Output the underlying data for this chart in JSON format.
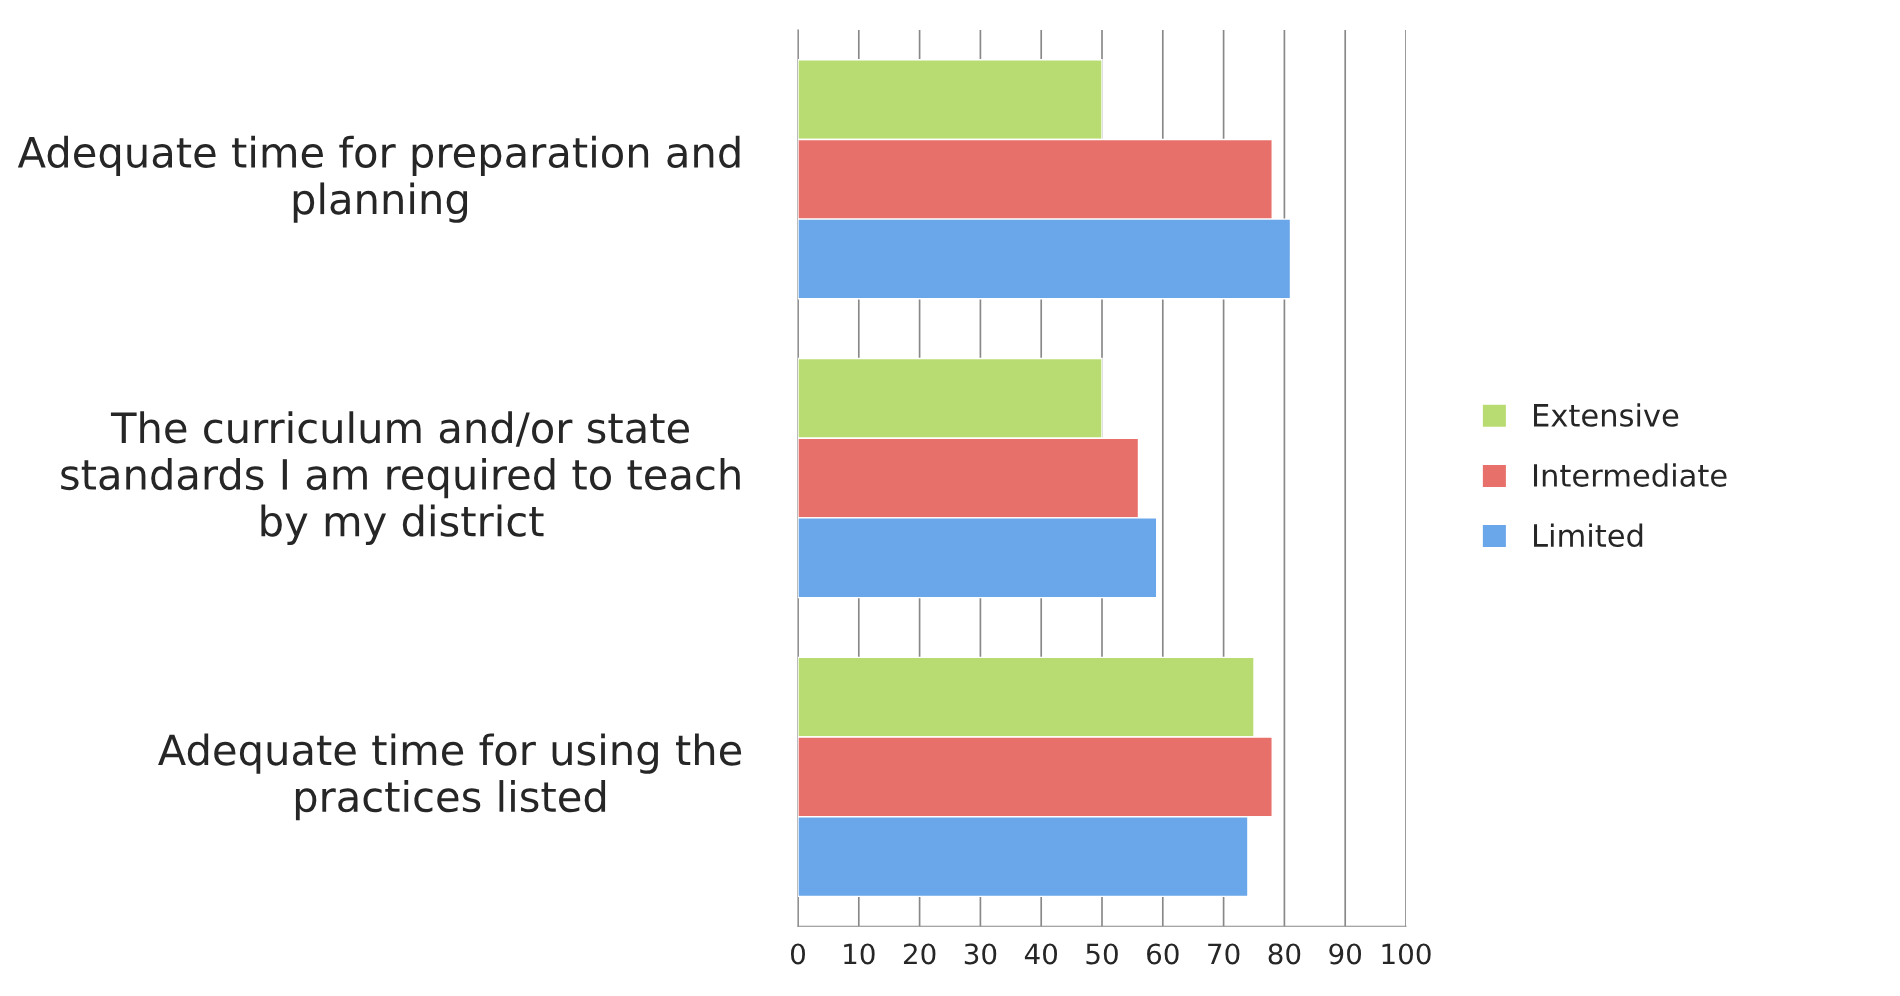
{
  "chart_data": {
    "type": "bar",
    "orientation": "horizontal",
    "categories": [
      "Adequate time for preparation and planning",
      "The curriculum and/or state standards I am required to teach by my district",
      "Adequate time for using the practices listed"
    ],
    "series": [
      {
        "name": "Extensive",
        "color": "#b8dc72",
        "values": [
          50,
          50,
          75
        ]
      },
      {
        "name": "Intermediate",
        "color": "#e8706a",
        "values": [
          78,
          56,
          78
        ]
      },
      {
        "name": "Limited",
        "color": "#6aa6ea",
        "values": [
          81,
          59,
          74
        ]
      }
    ],
    "xlim": [
      0,
      100
    ],
    "xticks": [
      0,
      10,
      20,
      30,
      40,
      50,
      60,
      70,
      80,
      90,
      100
    ],
    "grid": "x",
    "legend": "right"
  }
}
